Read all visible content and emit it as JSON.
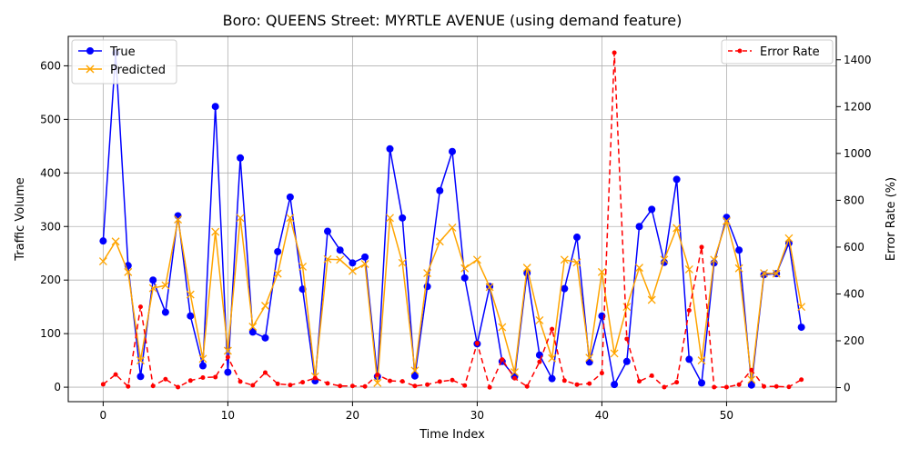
{
  "chart_data": {
    "type": "line",
    "title": "Boro: QUEENS Street: MYRTLE AVENUE (using demand feature)",
    "xlabel": "Time Index",
    "ylabel": "Traffic Volume",
    "y2label": "Error Rate (%)",
    "xlim": [
      -2.8,
      58.8
    ],
    "ylim": [
      -27,
      655
    ],
    "y2lim": [
      -60,
      1500
    ],
    "x_ticks": [
      0,
      10,
      20,
      30,
      40,
      50
    ],
    "y_ticks": [
      0,
      100,
      200,
      300,
      400,
      500,
      600
    ],
    "y2_ticks": [
      0,
      200,
      400,
      600,
      800,
      1000,
      1200,
      1400
    ],
    "grid": true,
    "legend_left_position": "upper-left",
    "legend_right_position": "upper-right",
    "x": [
      0,
      1,
      2,
      3,
      4,
      5,
      6,
      7,
      8,
      9,
      10,
      11,
      12,
      13,
      14,
      15,
      16,
      17,
      18,
      19,
      20,
      21,
      22,
      23,
      24,
      25,
      26,
      27,
      28,
      29,
      30,
      31,
      32,
      33,
      34,
      35,
      36,
      37,
      38,
      39,
      40,
      41,
      42,
      43,
      44,
      45,
      46,
      47,
      48,
      49,
      50,
      51,
      52,
      53,
      54,
      55,
      56
    ],
    "series": [
      {
        "name": "True",
        "axis": "left",
        "color": "#0000ff",
        "marker": "circle",
        "values": [
          273,
          624,
          227,
          20,
          200,
          140,
          320,
          133,
          40,
          524,
          28,
          428,
          103,
          92,
          253,
          355,
          183,
          12,
          291,
          256,
          232,
          243,
          20,
          445,
          316,
          21,
          188,
          367,
          440,
          204,
          81,
          188,
          48,
          20,
          213,
          60,
          16,
          184,
          280,
          47,
          133,
          5,
          48,
          300,
          332,
          233,
          388,
          52,
          8,
          232,
          317,
          256,
          4,
          210,
          212,
          269,
          112
        ]
      },
      {
        "name": "Predicted",
        "axis": "left",
        "color": "#ffa500",
        "marker": "x",
        "values": [
          235,
          272,
          215,
          50,
          185,
          190,
          313,
          173,
          53,
          290,
          68,
          316,
          113,
          152,
          212,
          316,
          225,
          20,
          239,
          238,
          217,
          230,
          8,
          316,
          232,
          31,
          213,
          272,
          298,
          222,
          238,
          187,
          112,
          28,
          223,
          125,
          54,
          238,
          233,
          55,
          215,
          63,
          150,
          223,
          163,
          238,
          297,
          220,
          50,
          238,
          310,
          222,
          14,
          213,
          212,
          278,
          150
        ]
      },
      {
        "name": "Error Rate",
        "axis": "right",
        "color": "#ff0000",
        "marker": "dot",
        "dashed": true,
        "values": [
          14,
          56,
          5,
          345,
          7,
          36,
          2,
          30,
          43,
          45,
          130,
          26,
          10,
          64,
          16,
          11,
          23,
          41,
          18,
          7,
          7,
          5,
          55,
          29,
          27,
          7,
          13,
          26,
          32,
          9,
          190,
          1,
          120,
          40,
          5,
          110,
          250,
          30,
          13,
          17,
          62,
          1430,
          208,
          27,
          51,
          2,
          23,
          330,
          600,
          2,
          2,
          13,
          75,
          5,
          5,
          3,
          34
        ]
      }
    ]
  }
}
